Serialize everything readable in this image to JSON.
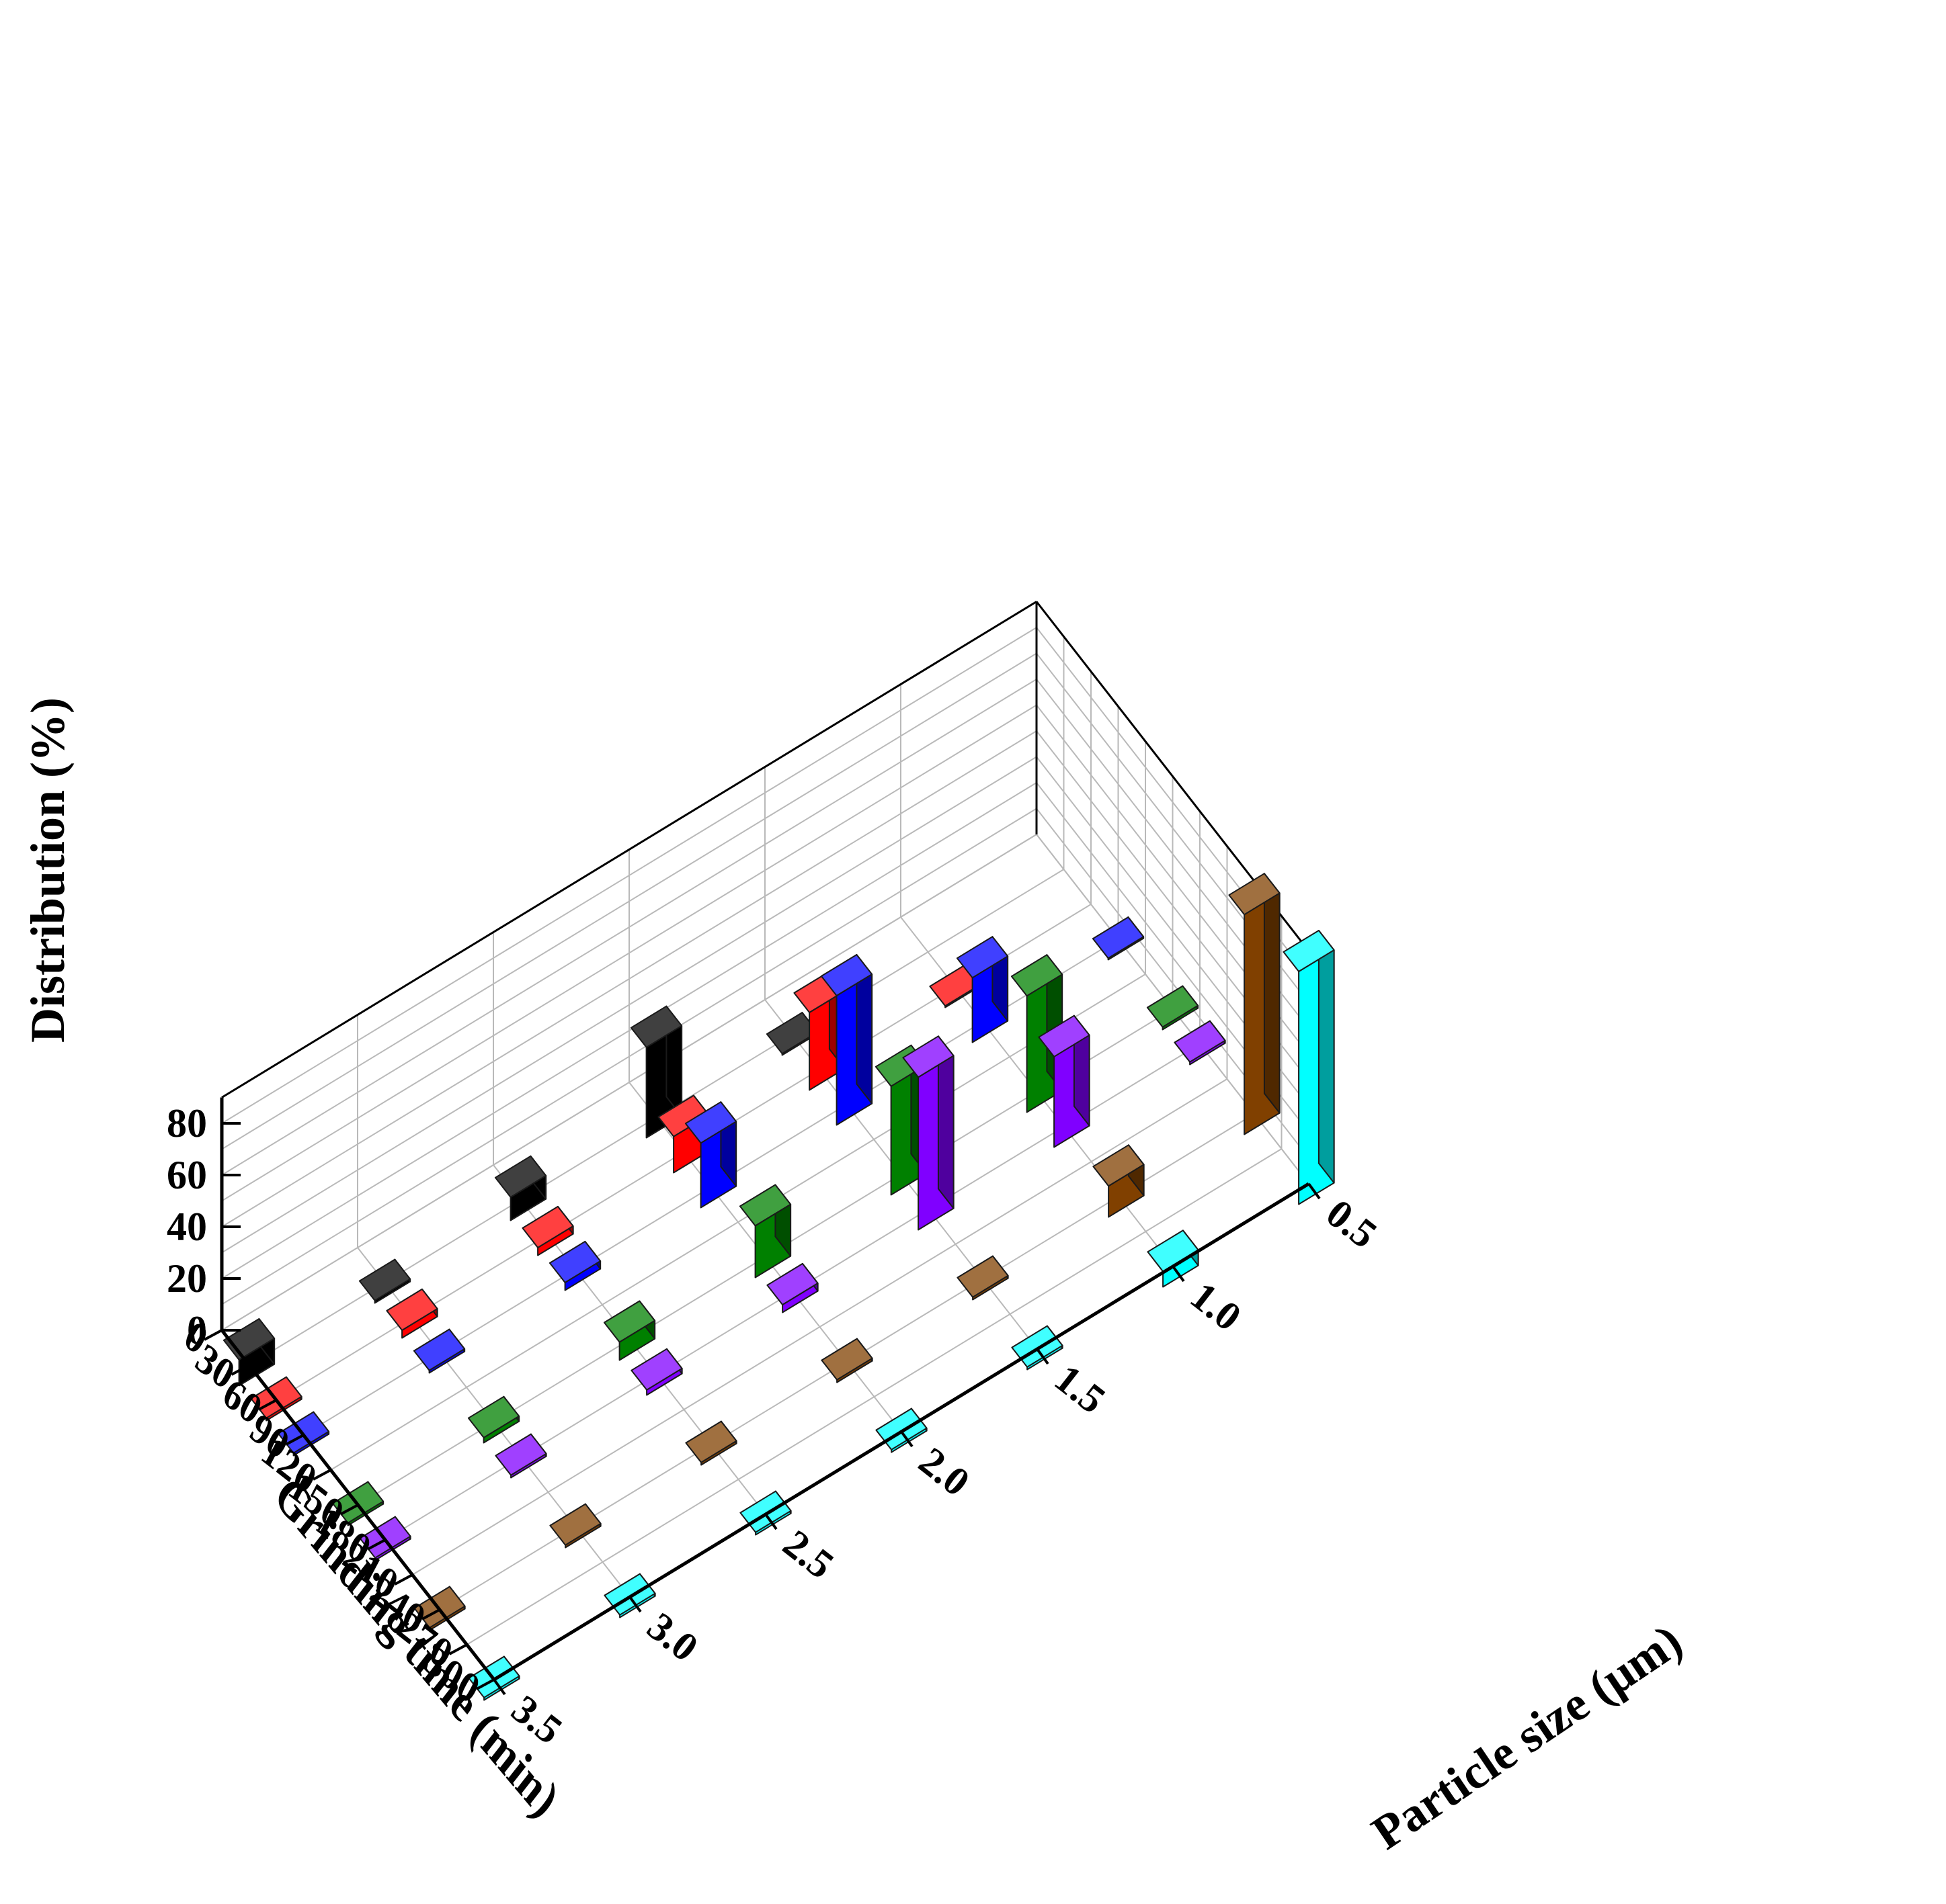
{
  "chart_data": {
    "type": "bar3d",
    "z_axis": {
      "label": "Distribution (%)",
      "range": [
        0,
        90
      ],
      "ticks": [
        0,
        20,
        40,
        60,
        80
      ]
    },
    "time_axis": {
      "label": "Grinding time (min)",
      "ticks": [
        0,
        30,
        60,
        90,
        120,
        150,
        180,
        210,
        240,
        270,
        300
      ]
    },
    "size_axis": {
      "label": "Particle size (μm)",
      "ticks": [
        "0.5",
        "1.0",
        "1.5",
        "2.0",
        "2.5",
        "3.0",
        "3.5"
      ]
    },
    "series": [
      {
        "time": 30,
        "color": "#000000",
        "values": [
          {
            "size": 1.5,
            "value": 0
          },
          {
            "size": 2.0,
            "value": 35
          },
          {
            "size": 2.5,
            "value": 9
          },
          {
            "size": 3.0,
            "value": 1
          },
          {
            "size": 3.5,
            "value": 10
          }
        ]
      },
      {
        "time": 60,
        "color": "#ff0000",
        "values": [
          {
            "size": 1.0,
            "value": 0
          },
          {
            "size": 1.5,
            "value": 30
          },
          {
            "size": 2.0,
            "value": 14
          },
          {
            "size": 2.5,
            "value": 3
          },
          {
            "size": 3.0,
            "value": 3
          },
          {
            "size": 3.5,
            "value": 1
          }
        ]
      },
      {
        "time": 90,
        "color": "#0000ff",
        "values": [
          {
            "size": 0.5,
            "value": 0
          },
          {
            "size": 1.0,
            "value": 25
          },
          {
            "size": 1.5,
            "value": 50
          },
          {
            "size": 2.0,
            "value": 25
          },
          {
            "size": 2.5,
            "value": 3
          },
          {
            "size": 3.0,
            "value": 1
          },
          {
            "size": 3.5,
            "value": 1
          }
        ]
      },
      {
        "time": 150,
        "color": "#008000",
        "values": [
          {
            "size": 0.5,
            "value": 1
          },
          {
            "size": 1.0,
            "value": 45
          },
          {
            "size": 1.5,
            "value": 42
          },
          {
            "size": 2.0,
            "value": 20
          },
          {
            "size": 2.5,
            "value": 7
          },
          {
            "size": 3.0,
            "value": 2
          },
          {
            "size": 3.5,
            "value": 1
          }
        ]
      },
      {
        "time": 180,
        "color": "#8000ff",
        "values": [
          {
            "size": 0.5,
            "value": 1
          },
          {
            "size": 1.0,
            "value": 35
          },
          {
            "size": 1.5,
            "value": 59
          },
          {
            "size": 2.0,
            "value": 3
          },
          {
            "size": 2.5,
            "value": 2
          },
          {
            "size": 3.0,
            "value": 1
          },
          {
            "size": 3.5,
            "value": 1
          }
        ]
      },
      {
        "time": 240,
        "color": "#804000",
        "values": [
          {
            "size": 0.5,
            "value": 85
          },
          {
            "size": 1.0,
            "value": 12
          },
          {
            "size": 1.5,
            "value": 1
          },
          {
            "size": 2.0,
            "value": 1
          },
          {
            "size": 2.5,
            "value": 1
          },
          {
            "size": 3.0,
            "value": 1
          },
          {
            "size": 3.5,
            "value": 1
          }
        ]
      },
      {
        "time": 300,
        "color": "#00ffff",
        "values": [
          {
            "size": 0.5,
            "value": 90
          },
          {
            "size": 1.0,
            "value": 6
          },
          {
            "size": 1.5,
            "value": 1
          },
          {
            "size": 2.0,
            "value": 1
          },
          {
            "size": 2.5,
            "value": 1
          },
          {
            "size": 3.0,
            "value": 1
          },
          {
            "size": 3.5,
            "value": 1
          }
        ]
      }
    ]
  }
}
